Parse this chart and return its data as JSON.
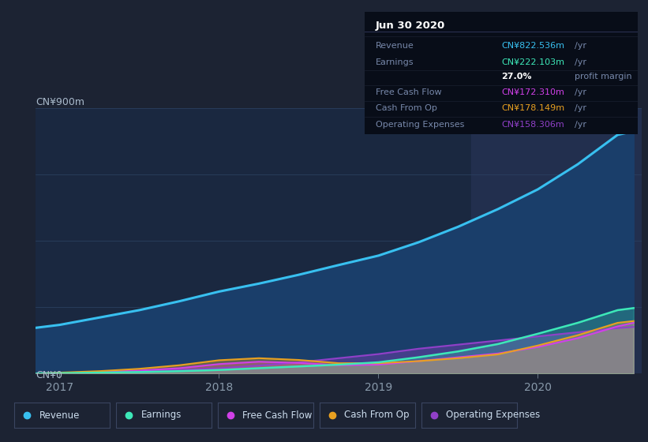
{
  "bg_color": "#1c2333",
  "plot_bg": "#1a2840",
  "ylabel": "CN¥900m",
  "ylabel_zero": "CN¥0",
  "x_ticks": [
    2017,
    2018,
    2019,
    2020
  ],
  "ylim": [
    0,
    900
  ],
  "xlim": [
    2016.85,
    2020.65
  ],
  "series": {
    "revenue": {
      "x": [
        2016.85,
        2017.0,
        2017.25,
        2017.5,
        2017.75,
        2018.0,
        2018.25,
        2018.5,
        2018.75,
        2019.0,
        2019.25,
        2019.5,
        2019.75,
        2020.0,
        2020.25,
        2020.5,
        2020.6
      ],
      "y": [
        155,
        165,
        190,
        215,
        245,
        278,
        305,
        335,
        368,
        400,
        445,
        498,
        558,
        625,
        710,
        810,
        822
      ],
      "color": "#38c0f0",
      "fill_color": "#1a3e6a",
      "lw": 2.2
    },
    "earnings": {
      "x": [
        2016.85,
        2017.0,
        2017.25,
        2017.5,
        2017.75,
        2018.0,
        2018.25,
        2018.5,
        2018.75,
        2019.0,
        2019.25,
        2019.5,
        2019.75,
        2020.0,
        2020.25,
        2020.5,
        2020.6
      ],
      "y": [
        0,
        1,
        3,
        5,
        8,
        12,
        18,
        24,
        30,
        38,
        55,
        75,
        100,
        135,
        172,
        215,
        222
      ],
      "color": "#3de8b8",
      "lw": 1.8
    },
    "free_cash_flow": {
      "x": [
        2016.85,
        2017.0,
        2017.25,
        2017.5,
        2017.75,
        2018.0,
        2018.25,
        2018.5,
        2018.75,
        2019.0,
        2019.25,
        2019.5,
        2019.75,
        2020.0,
        2020.25,
        2020.5,
        2020.6
      ],
      "y": [
        0,
        2,
        5,
        10,
        18,
        32,
        40,
        36,
        28,
        30,
        42,
        55,
        68,
        90,
        120,
        160,
        172
      ],
      "color": "#d040e8",
      "lw": 1.5
    },
    "cash_from_op": {
      "x": [
        2016.85,
        2017.0,
        2017.25,
        2017.5,
        2017.75,
        2018.0,
        2018.25,
        2018.5,
        2018.75,
        2019.0,
        2019.25,
        2019.5,
        2019.75,
        2020.0,
        2020.25,
        2020.5,
        2020.6
      ],
      "y": [
        0,
        3,
        8,
        16,
        28,
        45,
        52,
        46,
        35,
        35,
        42,
        52,
        65,
        95,
        130,
        172,
        178
      ],
      "color": "#e8a020",
      "lw": 1.5
    },
    "operating_expenses": {
      "x": [
        2016.85,
        2017.0,
        2017.25,
        2017.5,
        2017.75,
        2018.0,
        2018.25,
        2018.5,
        2018.75,
        2019.0,
        2019.25,
        2019.5,
        2019.75,
        2020.0,
        2020.25,
        2020.5,
        2020.6
      ],
      "y": [
        0,
        2,
        5,
        8,
        12,
        18,
        27,
        38,
        52,
        66,
        84,
        98,
        112,
        126,
        140,
        154,
        158
      ],
      "color": "#9040c8",
      "lw": 1.5
    }
  },
  "legend": [
    {
      "label": "Revenue",
      "color": "#38c0f0"
    },
    {
      "label": "Earnings",
      "color": "#3de8b8"
    },
    {
      "label": "Free Cash Flow",
      "color": "#d040e8"
    },
    {
      "label": "Cash From Op",
      "color": "#e8a020"
    },
    {
      "label": "Operating Expenses",
      "color": "#9040c8"
    }
  ],
  "grid_color": "#2a3f5f",
  "highlight_x_start": 2019.58,
  "infobox": {
    "date": "Jun 30 2020",
    "rows": [
      {
        "label": "Revenue",
        "value": "CN¥822.536m",
        "unit": "/yr",
        "vcolor": "#38c0f0",
        "sep_below": true
      },
      {
        "label": "Earnings",
        "value": "CN¥222.103m",
        "unit": "/yr",
        "vcolor": "#3de8b8",
        "sep_below": false
      },
      {
        "label": "",
        "value": "27.0%",
        "unit": "profit margin",
        "vcolor": "#ffffff",
        "bold_val": true,
        "sep_below": true
      },
      {
        "label": "Free Cash Flow",
        "value": "CN¥172.310m",
        "unit": "/yr",
        "vcolor": "#d040e8",
        "sep_below": true
      },
      {
        "label": "Cash From Op",
        "value": "CN¥178.149m",
        "unit": "/yr",
        "vcolor": "#e8a020",
        "sep_below": true
      },
      {
        "label": "Operating Expenses",
        "value": "CN¥158.306m",
        "unit": "/yr",
        "vcolor": "#9040c8",
        "sep_below": false
      }
    ]
  }
}
